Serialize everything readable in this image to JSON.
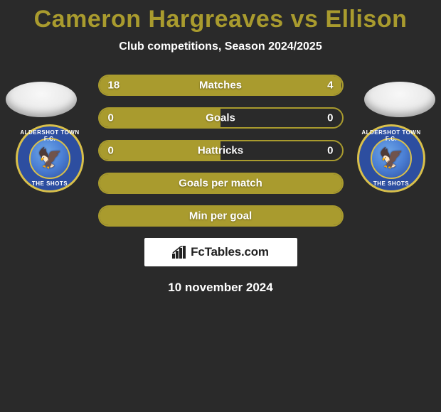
{
  "title": "Cameron Hargreaves vs Ellison",
  "title_color": "#a99b2e",
  "subtitle": "Club competitions, Season 2024/2025",
  "background_color": "#2a2a2a",
  "left_player_color": "#a99b2e",
  "right_player_color": "#a99b2e",
  "bar_track_color": "#2a2a2a",
  "bar_border_color": "#a99b2e",
  "crest": {
    "outer_color": "#2d4ea0",
    "ring_color": "#d9c04a",
    "inner_color": "#4b7fd4",
    "text_top": "ALDERSHOT TOWN F.C.",
    "text_bottom": "THE SHOTS",
    "bird_glyph": "🦅"
  },
  "rows": [
    {
      "label": "Matches",
      "left": "18",
      "right": "4",
      "left_pct": 82,
      "right_pct": 18,
      "show_values": true,
      "fill": "both"
    },
    {
      "label": "Goals",
      "left": "0",
      "right": "0",
      "left_pct": 50,
      "right_pct": 0,
      "show_values": true,
      "fill": "half-left"
    },
    {
      "label": "Hattricks",
      "left": "0",
      "right": "0",
      "left_pct": 50,
      "right_pct": 0,
      "show_values": true,
      "fill": "half-left"
    },
    {
      "label": "Goals per match",
      "left": "",
      "right": "",
      "left_pct": 100,
      "right_pct": 0,
      "show_values": false,
      "fill": "full"
    },
    {
      "label": "Min per goal",
      "left": "",
      "right": "",
      "left_pct": 100,
      "right_pct": 0,
      "show_values": false,
      "fill": "full"
    }
  ],
  "brand": {
    "icon_color": "#222222",
    "text": "FcTables.com"
  },
  "date": "10 november 2024"
}
